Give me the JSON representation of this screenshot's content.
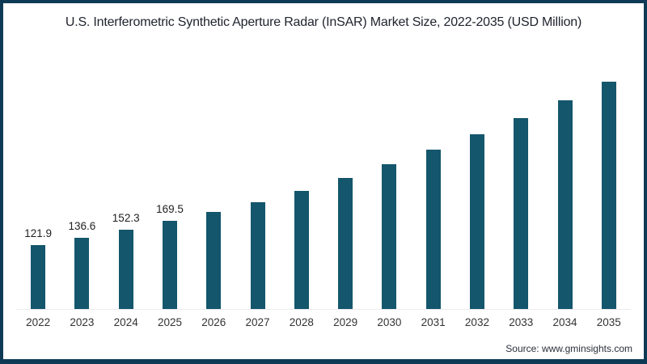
{
  "title": "U.S. Interferometric Synthetic Aperture Radar (InSAR) Market Size, 2022-2035 (USD Million)",
  "source_text": "Source: www.gminsights.com",
  "colors": {
    "frame_border": "#0e3a56",
    "bar": "#14566c",
    "title_text": "#20242e",
    "axis_label_text": "#333333",
    "value_label_text": "#1f1f1f",
    "baseline": "#ececec",
    "background": "#ffffff"
  },
  "chart_data": {
    "type": "bar",
    "title": "U.S. Interferometric Synthetic Aperture Radar (InSAR) Market Size, 2022-2035 (USD Million)",
    "unit": "USD Million",
    "categories": [
      "2022",
      "2023",
      "2024",
      "2025",
      "2026",
      "2027",
      "2028",
      "2029",
      "2030",
      "2031",
      "2032",
      "2033",
      "2034",
      "2035"
    ],
    "values": [
      121.9,
      136.6,
      152.3,
      169.5,
      186.5,
      204.5,
      226,
      251,
      277,
      305,
      335,
      366,
      400,
      435
    ],
    "data_labels": [
      "121.9",
      "136.6",
      "152.3",
      "169.5",
      "",
      "",
      "",
      "",
      "",
      "",
      "",
      "",
      "",
      ""
    ],
    "xlabel": "",
    "ylabel": "",
    "ylim": [
      0,
      450
    ],
    "grid": false,
    "legend": false,
    "bar_color": "#14566c"
  }
}
